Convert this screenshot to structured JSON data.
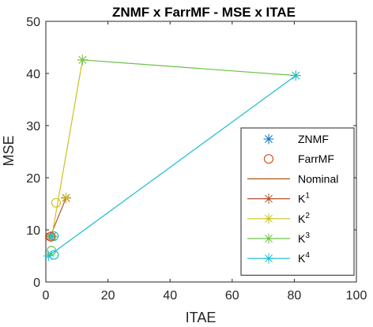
{
  "chart_data": {
    "type": "scatter",
    "title": "ZNMF x FarrMF - MSE  x ITAE",
    "xlabel": "ITAE",
    "ylabel": "MSE",
    "xlim": [
      0,
      100
    ],
    "ylim": [
      0,
      50
    ],
    "xticks": [
      "0",
      "20",
      "40",
      "60",
      "80",
      "100"
    ],
    "yticks": [
      "0",
      "10",
      "20",
      "30",
      "40",
      "50"
    ],
    "grid": false,
    "legend_position": "bottom-right",
    "legend": [
      {
        "label": "ZNMF",
        "sup": "",
        "style": "marker-star",
        "color": "#0072BD"
      },
      {
        "label": "FarrMF",
        "sup": "",
        "style": "marker-circle",
        "color": "#D95319"
      },
      {
        "label": "Nominal",
        "sup": "",
        "style": "line",
        "color": "#A2591A"
      },
      {
        "label": "K",
        "sup": "1",
        "style": "line-star",
        "color": "#B5522B"
      },
      {
        "label": "K",
        "sup": "2",
        "style": "line-star",
        "color": "#C8C21F"
      },
      {
        "label": "K",
        "sup": "3",
        "style": "line-star",
        "color": "#6CC24A"
      },
      {
        "label": "K",
        "sup": "4",
        "style": "line-star",
        "color": "#17BECF"
      }
    ],
    "series": [
      {
        "name": "Nominal",
        "color": "#A2591A",
        "points": [
          [
            1.4,
            8.7
          ],
          [
            2.1,
            8.9
          ]
        ],
        "markers": []
      },
      {
        "name": "K1",
        "color": "#B5522B",
        "points": [
          [
            1.4,
            8.7
          ],
          [
            6.5,
            16.1
          ]
        ],
        "markers": [
          [
            1.4,
            8.7
          ],
          [
            6.5,
            16.1
          ]
        ]
      },
      {
        "name": "K2",
        "color": "#C8C21F",
        "points": [
          [
            1.9,
            8.6
          ],
          [
            11.8,
            42.6
          ]
        ],
        "markers": [
          [
            1.9,
            8.6
          ],
          [
            11.8,
            42.6
          ],
          [
            6.5,
            16.2
          ]
        ]
      },
      {
        "name": "K3",
        "color": "#6CC24A",
        "points": [
          [
            11.8,
            42.6
          ],
          [
            80.5,
            39.6
          ]
        ],
        "markers": [
          [
            11.8,
            42.6
          ],
          [
            80.5,
            39.6
          ]
        ]
      },
      {
        "name": "K4",
        "color": "#17BECF",
        "points": [
          [
            80.5,
            39.6
          ],
          [
            0.9,
            5.0
          ]
        ],
        "markers": [
          [
            80.5,
            39.6
          ],
          [
            0.9,
            5.0
          ],
          [
            2.1,
            8.8
          ]
        ]
      }
    ],
    "circle_markers": [
      {
        "color": "#C8C21F",
        "x": 3.3,
        "y": 15.2
      },
      {
        "color": "#17BECF",
        "x": 2.6,
        "y": 8.8
      },
      {
        "color": "#17BECF",
        "x": 2.6,
        "y": 5.2
      },
      {
        "color": "#D95319",
        "x": 1.6,
        "y": 8.7
      },
      {
        "color": "#6CC24A",
        "x": 1.8,
        "y": 6.0
      }
    ]
  }
}
